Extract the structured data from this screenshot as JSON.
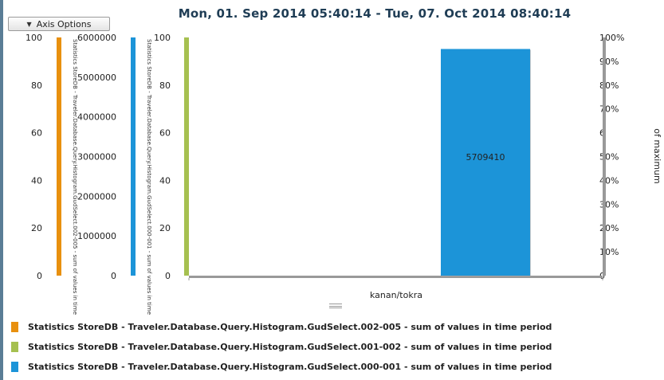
{
  "toolbar": {
    "axis_options_label": "Axis Options"
  },
  "chart_data": {
    "type": "bar",
    "title": "Mon, 01. Sep 2014 05:40:14 - Tue, 07. Oct 2014 08:40:14",
    "categories": [
      "kanan/tokra"
    ],
    "xlabel": "",
    "axes": [
      {
        "id": "axis-002-005",
        "label": "Statistics StoreDB - Traveler.Database.Query.Histogram.GudSelect.002-005 - sum of values in time period",
        "ticks": [
          "100",
          "80",
          "60",
          "40",
          "20",
          "0"
        ],
        "ylim": [
          0,
          100
        ],
        "color": "#e8900f"
      },
      {
        "id": "axis-000-001",
        "label": "Statistics StoreDB - Traveler.Database.Query.Histogram.GudSelect.000-001 - sum of values in time period",
        "ticks": [
          "6000000",
          "5000000",
          "4000000",
          "3000000",
          "2000000",
          "1000000",
          "0"
        ],
        "ylim": [
          0,
          6000000
        ],
        "color": "#1c94d8"
      },
      {
        "id": "axis-001-002",
        "label": "",
        "ticks": [
          "100",
          "80",
          "60",
          "40",
          "20",
          "0"
        ],
        "ylim": [
          0,
          100
        ],
        "color": "#a6c050"
      },
      {
        "id": "axis-percent",
        "label": "of maximum",
        "ticks": [
          "100%",
          "90%",
          "80%",
          "70%",
          "6",
          "50%",
          "40%",
          "30%",
          "20%",
          "10%",
          "0"
        ],
        "ylim": [
          0,
          100
        ],
        "color": "#999999"
      }
    ],
    "series": [
      {
        "name": "Statistics StoreDB - Traveler.Database.Query.Histogram.GudSelect.002-005 - sum of values in time period",
        "color": "#e8900f",
        "values": [
          0
        ],
        "data_labels": [
          ""
        ]
      },
      {
        "name": "Statistics StoreDB - Traveler.Database.Query.Histogram.GudSelect.001-002 - sum of values in time period",
        "color": "#a6c050",
        "values": [
          0
        ],
        "data_labels": [
          ""
        ]
      },
      {
        "name": "Statistics StoreDB - Traveler.Database.Query.Histogram.GudSelect.000-001 - sum of values in time period",
        "color": "#1c94d8",
        "values": [
          5709410
        ],
        "data_labels": [
          "5709410"
        ]
      }
    ],
    "grid": false,
    "legend_position": "bottom"
  }
}
